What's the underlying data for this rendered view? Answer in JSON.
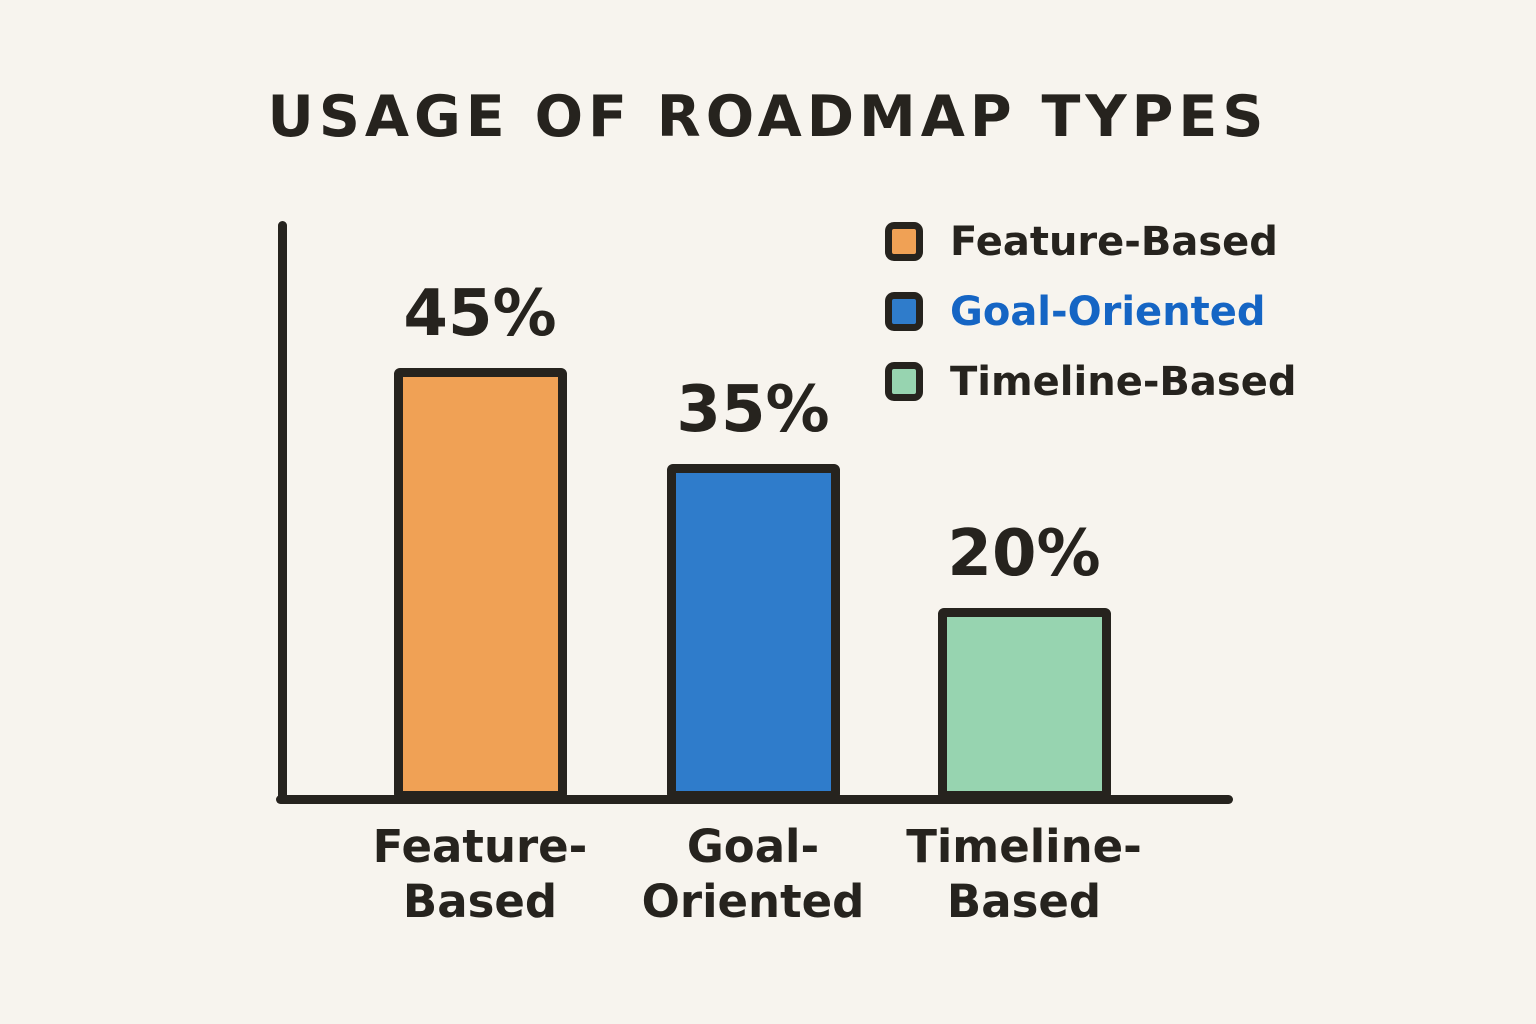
{
  "chart_data": {
    "type": "bar",
    "title": "USAGE OF ROADMAP TYPES",
    "categories": [
      "Feature-Based",
      "Goal-Oriented",
      "Timeline-Based"
    ],
    "values": [
      45,
      35,
      20
    ],
    "unit": "%",
    "value_labels": [
      "45%",
      "35%",
      "20%"
    ],
    "xlabel": "",
    "ylabel": "",
    "ylim": [
      0,
      60
    ],
    "grid": false,
    "bar_colors": [
      "#f0a155",
      "#2f7ccb",
      "#97d4b0"
    ],
    "axis_color": "#26231e",
    "background_color": "#f7f4ee",
    "legend": {
      "position": "top-right",
      "items": [
        {
          "label": "Feature-Based",
          "swatch": "#f0a155",
          "text_color": "#26231e"
        },
        {
          "label": "Goal-Oriented",
          "swatch": "#2f7ccb",
          "text_color": "#1565c4"
        },
        {
          "label": "Timeline-Based",
          "swatch": "#97d4b0",
          "text_color": "#26231e"
        }
      ]
    }
  }
}
